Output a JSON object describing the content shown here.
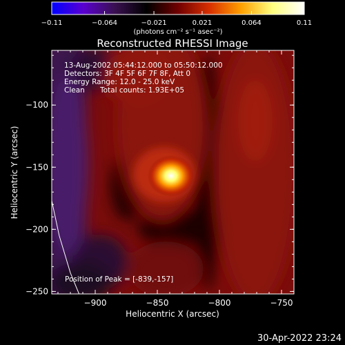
{
  "chart_data": {
    "type": "heatmap",
    "title": "Reconstructed RHESSI Image",
    "xlabel": "Heliocentric X (arcsec)",
    "ylabel": "Heliocentric Y (arcsec)",
    "xlim": [
      -935,
      -740
    ],
    "ylim": [
      -252,
      -56
    ],
    "x_ticks": [
      {
        "value": -900,
        "label": "−900"
      },
      {
        "value": -850,
        "label": "−850"
      },
      {
        "value": -800,
        "label": "−800"
      },
      {
        "value": -750,
        "label": "−750"
      }
    ],
    "y_ticks": [
      {
        "value": -100,
        "label": "−100"
      },
      {
        "value": -150,
        "label": "−150"
      },
      {
        "value": -200,
        "label": "−200"
      },
      {
        "value": -250,
        "label": "−250"
      }
    ],
    "colorbar": {
      "range": [
        -0.11,
        0.11
      ],
      "ticks": [
        {
          "value": -0.11,
          "label": "−0.11"
        },
        {
          "value": -0.064,
          "label": "−0.064"
        },
        {
          "value": -0.021,
          "label": "−0.021"
        },
        {
          "value": 0.021,
          "label": "0.021"
        },
        {
          "value": 0.064,
          "label": "0.064"
        },
        {
          "value": 0.11,
          "label": "0.11"
        }
      ],
      "units_label": "(photons cm⁻² s⁻¹ asec⁻²)",
      "colors": [
        "#0000ff",
        "#5a00d0",
        "#3a1050",
        "#000000",
        "#700000",
        "#d83000",
        "#ffa000",
        "#ffff80",
        "#ffffff"
      ]
    },
    "annotations": {
      "time_range": "13-Aug-2002 05:44:12.000 to 05:50:12.000",
      "detectors": "Detectors: 3F 4F 5F 6F 7F 8F, Att 0",
      "energy_range": "Energy Range: 12.0 - 25.0 keV",
      "clean_label": "Clean",
      "total_counts": "Total counts: 1.93E+05",
      "peak_position": "Position of Peak = [-839,-157]"
    },
    "peak": {
      "x": -839,
      "y": -157,
      "value": 0.11
    },
    "limb_curve": [
      [
        -935,
        -177
      ],
      [
        -929,
        -205
      ],
      [
        -920,
        -235
      ],
      [
        -913,
        -252
      ]
    ]
  },
  "footer": {
    "timestamp": "30-Apr-2022 23:24"
  }
}
